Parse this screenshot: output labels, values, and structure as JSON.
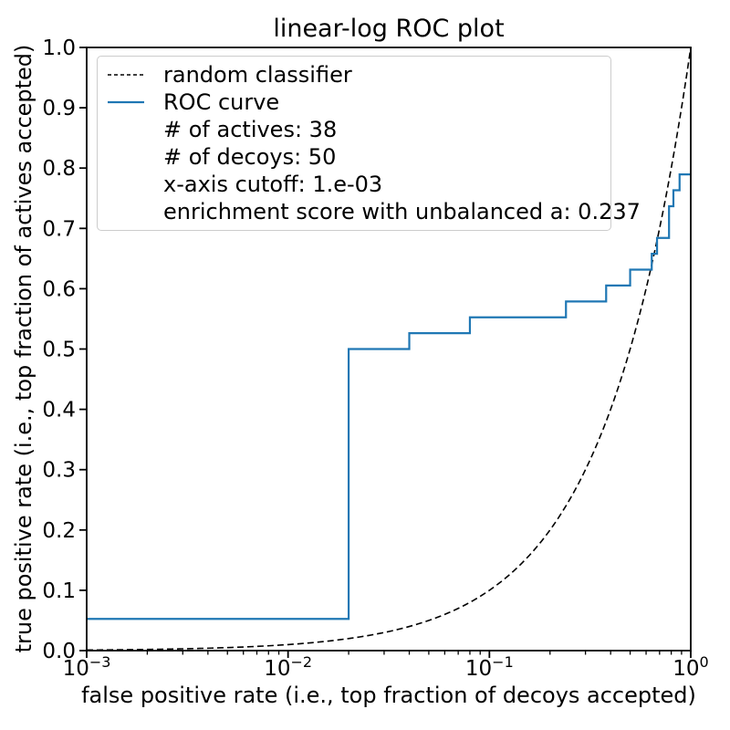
{
  "chart_data": {
    "type": "line",
    "title": "linear-log ROC plot",
    "xlabel": "false positive rate (i.e., top fraction of decoys accepted)",
    "ylabel": "true positive rate (i.e., top fraction of actives accepted)",
    "x_scale": "log",
    "y_scale": "linear",
    "xlim": [
      0.001,
      1.0
    ],
    "ylim": [
      0.0,
      1.0
    ],
    "grid": false,
    "x_ticks": [
      {
        "value": 0.001,
        "mantissa": "10",
        "exponent": "−3"
      },
      {
        "value": 0.01,
        "mantissa": "10",
        "exponent": "−2"
      },
      {
        "value": 0.1,
        "mantissa": "10",
        "exponent": "−1"
      },
      {
        "value": 1.0,
        "mantissa": "10",
        "exponent": "0"
      }
    ],
    "y_ticks": [
      {
        "value": 0.0,
        "label": "0.0"
      },
      {
        "value": 0.1,
        "label": "0.1"
      },
      {
        "value": 0.2,
        "label": "0.2"
      },
      {
        "value": 0.3,
        "label": "0.3"
      },
      {
        "value": 0.4,
        "label": "0.4"
      },
      {
        "value": 0.5,
        "label": "0.5"
      },
      {
        "value": 0.6,
        "label": "0.6"
      },
      {
        "value": 0.7,
        "label": "0.7"
      },
      {
        "value": 0.8,
        "label": "0.8"
      },
      {
        "value": 0.9,
        "label": "0.9"
      },
      {
        "value": 1.0,
        "label": "1.0"
      }
    ],
    "series": [
      {
        "name": "random classifier",
        "kind": "identity-line",
        "line_style": "dashed",
        "color": "#000000",
        "x_start": 0.001,
        "x_end": 1.0
      },
      {
        "name": "ROC curve",
        "kind": "step",
        "line_style": "solid",
        "color": "#1f77b4",
        "points": [
          [
            0.001,
            0.0526
          ],
          [
            0.02,
            0.0526
          ],
          [
            0.02,
            0.5
          ],
          [
            0.04,
            0.5
          ],
          [
            0.04,
            0.5263
          ],
          [
            0.08,
            0.5263
          ],
          [
            0.08,
            0.5526
          ],
          [
            0.24,
            0.5526
          ],
          [
            0.24,
            0.5789
          ],
          [
            0.38,
            0.5789
          ],
          [
            0.38,
            0.6053
          ],
          [
            0.5,
            0.6053
          ],
          [
            0.5,
            0.6316
          ],
          [
            0.64,
            0.6316
          ],
          [
            0.64,
            0.6579
          ],
          [
            0.68,
            0.6579
          ],
          [
            0.68,
            0.6842
          ],
          [
            0.78,
            0.6842
          ],
          [
            0.78,
            0.7368
          ],
          [
            0.82,
            0.7368
          ],
          [
            0.82,
            0.7632
          ],
          [
            0.88,
            0.7632
          ],
          [
            0.88,
            0.7895
          ],
          [
            1.0,
            0.7895
          ]
        ]
      }
    ],
    "stats": {
      "n_actives": 38,
      "n_decoys": 50,
      "x_axis_cutoff": "1.e-03",
      "enrichment_score_unbalanced_a": 0.237
    },
    "legend": {
      "position": "upper left",
      "border_color": "#cccccc",
      "entries": [
        {
          "sample": "dashed",
          "label": "random classifier"
        },
        {
          "sample": "solid",
          "label": "ROC curve"
        },
        {
          "sample": "none",
          "label": "# of actives: 38"
        },
        {
          "sample": "none",
          "label": "# of decoys: 50"
        },
        {
          "sample": "none",
          "label": "x-axis cutoff: 1.e-03"
        },
        {
          "sample": "none",
          "label": "enrichment score with unbalanced a: 0.237"
        }
      ]
    }
  }
}
